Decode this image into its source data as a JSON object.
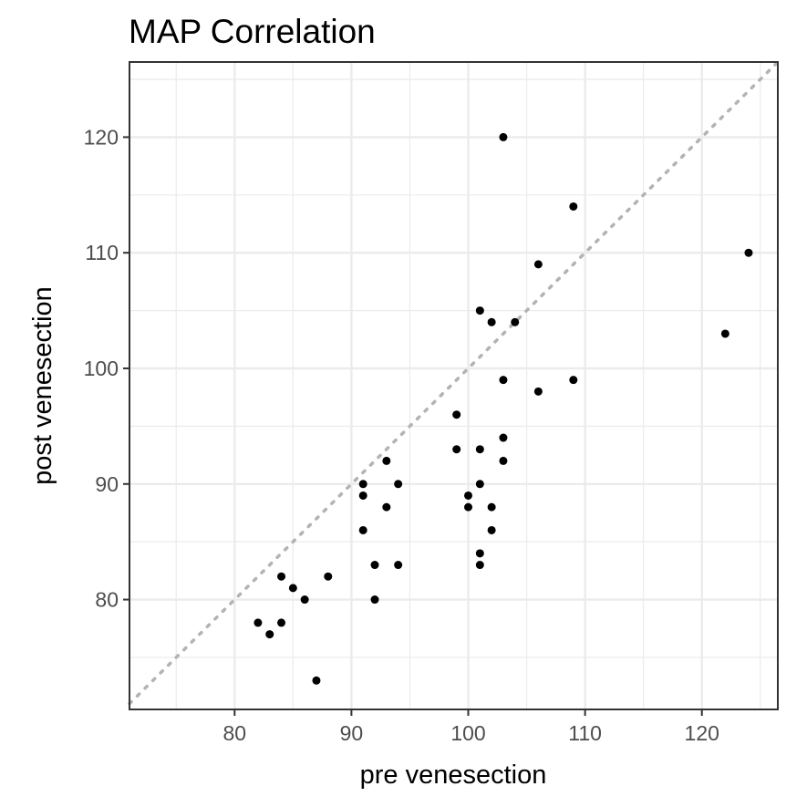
{
  "chart_data": {
    "type": "scatter",
    "title": "MAP   Correlation",
    "xlabel": "pre venesection",
    "ylabel": "post venesection",
    "xlim": [
      71,
      126.5
    ],
    "ylim": [
      70.5,
      126.5
    ],
    "x_ticks": [
      80,
      90,
      100,
      110,
      120
    ],
    "y_ticks": [
      80,
      90,
      100,
      110,
      120
    ],
    "grid": true,
    "legend": "none",
    "reference_line": {
      "type": "identity",
      "style": "dotted",
      "color": "#b3b3b3"
    },
    "point_color": "#000000",
    "points": [
      {
        "x": 103,
        "y": 120
      },
      {
        "x": 109,
        "y": 114
      },
      {
        "x": 124,
        "y": 110
      },
      {
        "x": 106,
        "y": 109
      },
      {
        "x": 101,
        "y": 105
      },
      {
        "x": 102,
        "y": 104
      },
      {
        "x": 104,
        "y": 104
      },
      {
        "x": 122,
        "y": 103
      },
      {
        "x": 103,
        "y": 99
      },
      {
        "x": 109,
        "y": 99
      },
      {
        "x": 106,
        "y": 98
      },
      {
        "x": 99,
        "y": 96
      },
      {
        "x": 103,
        "y": 94
      },
      {
        "x": 99,
        "y": 93
      },
      {
        "x": 101,
        "y": 93
      },
      {
        "x": 93,
        "y": 92
      },
      {
        "x": 103,
        "y": 92
      },
      {
        "x": 91,
        "y": 90
      },
      {
        "x": 94,
        "y": 90
      },
      {
        "x": 101,
        "y": 90
      },
      {
        "x": 91,
        "y": 89
      },
      {
        "x": 100,
        "y": 89
      },
      {
        "x": 93,
        "y": 88
      },
      {
        "x": 100,
        "y": 88
      },
      {
        "x": 102,
        "y": 88
      },
      {
        "x": 91,
        "y": 86
      },
      {
        "x": 102,
        "y": 86
      },
      {
        "x": 101,
        "y": 84
      },
      {
        "x": 92,
        "y": 83
      },
      {
        "x": 94,
        "y": 83
      },
      {
        "x": 101,
        "y": 83
      },
      {
        "x": 84,
        "y": 82
      },
      {
        "x": 88,
        "y": 82
      },
      {
        "x": 85,
        "y": 81
      },
      {
        "x": 86,
        "y": 80
      },
      {
        "x": 92,
        "y": 80
      },
      {
        "x": 82,
        "y": 78
      },
      {
        "x": 84,
        "y": 78
      },
      {
        "x": 83,
        "y": 77
      },
      {
        "x": 87,
        "y": 73
      }
    ]
  }
}
